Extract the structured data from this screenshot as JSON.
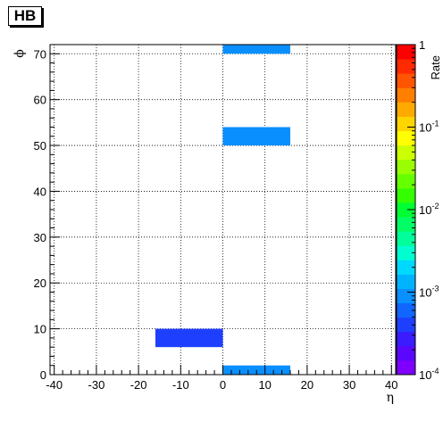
{
  "chart_data": {
    "type": "heatmap",
    "title": "HB",
    "xlabel": "η",
    "ylabel": "ϕ",
    "zlabel": "Rate",
    "xlim": [
      -41,
      41
    ],
    "ylim": [
      0,
      72
    ],
    "zlim": [
      0.0001,
      1
    ],
    "z_scale": "log",
    "grid": true,
    "x_ticks": [
      "-40",
      "-30",
      "-20",
      "-10",
      "0",
      "10",
      "20",
      "30",
      "40"
    ],
    "y_ticks": [
      "0",
      "10",
      "20",
      "30",
      "40",
      "50",
      "60",
      "70"
    ],
    "z_ticks": [
      {
        "base": "1",
        "exp": ""
      },
      {
        "base": "10",
        "exp": "-1"
      },
      {
        "base": "10",
        "exp": "-2"
      },
      {
        "base": "10",
        "exp": "-3"
      },
      {
        "base": "10",
        "exp": "-4"
      }
    ],
    "cells": [
      {
        "x0": 0,
        "x1": 16,
        "y0": 70,
        "y1": 72,
        "value": 0.001
      },
      {
        "x0": 0,
        "x1": 16,
        "y0": 50,
        "y1": 54,
        "value": 0.001
      },
      {
        "x0": -16,
        "x1": 0,
        "y0": 6,
        "y1": 10,
        "value": 0.00035
      },
      {
        "x0": 0,
        "x1": 16,
        "y0": 0,
        "y1": 2,
        "value": 0.001
      }
    ],
    "palette": [
      "#7f00ff",
      "#5a06ff",
      "#3b1bff",
      "#1f3fff",
      "#1166ff",
      "#0a8fff",
      "#00b3ff",
      "#00d9ff",
      "#00ffd0",
      "#00ff9a",
      "#00ff66",
      "#00ff33",
      "#33ff00",
      "#66ff00",
      "#99ff00",
      "#ccff00",
      "#ffff00",
      "#ffd500",
      "#ffaa00",
      "#ff7f00",
      "#ff5500",
      "#ff2a00",
      "#ff0000"
    ]
  }
}
